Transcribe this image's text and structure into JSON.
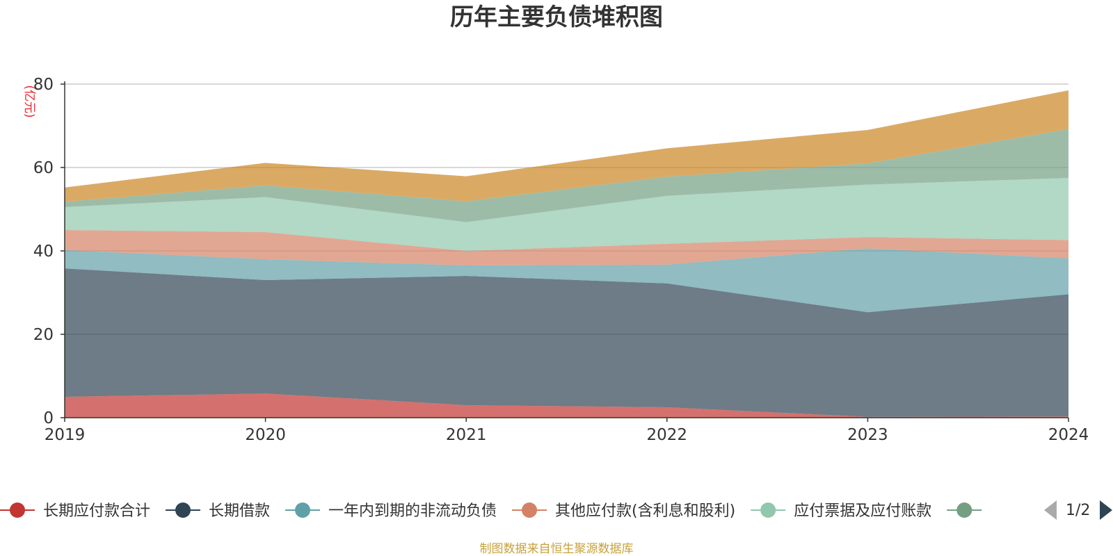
{
  "chart_data": {
    "type": "area",
    "stacked": true,
    "title": "历年主要负债堆积图",
    "unit": "(亿元)",
    "x": [
      "2019",
      "2020",
      "2021",
      "2022",
      "2023",
      "2024"
    ],
    "ylim": [
      0,
      80
    ],
    "yticks": [
      "0",
      "20",
      "40",
      "60",
      "80"
    ],
    "grid": true,
    "legend_position": "bottom",
    "series": [
      {
        "name": "长期应付款合计",
        "color": "#c23531",
        "values": [
          5.0,
          5.8,
          3.0,
          2.5,
          0.2,
          0.3
        ]
      },
      {
        "name": "长期借款",
        "color": "#2f4554",
        "values": [
          30.8,
          27.2,
          31.0,
          29.7,
          25.1,
          29.3
        ]
      },
      {
        "name": "一年内到期的非流动负债",
        "color": "#61a0a8",
        "values": [
          4.4,
          5.0,
          2.5,
          4.5,
          15.3,
          8.6
        ]
      },
      {
        "name": "其他应付款(含利息和股利)",
        "color": "#d48265",
        "values": [
          4.8,
          6.5,
          3.5,
          5.0,
          2.7,
          4.4
        ]
      },
      {
        "name": "应付票据及应付账款",
        "color": "#91c7ae",
        "values": [
          5.5,
          8.4,
          6.9,
          11.5,
          12.6,
          14.9
        ]
      },
      {
        "name": "",
        "color": "#749f83",
        "values": [
          1.3,
          2.8,
          5.0,
          4.6,
          5.1,
          11.7
        ]
      },
      {
        "name": "",
        "color": "#ca8622",
        "values": [
          3.4,
          5.4,
          6.0,
          6.8,
          8.0,
          9.3
        ]
      }
    ]
  },
  "legend": {
    "visible": [
      {
        "label": "长期应付款合计",
        "color": "#c23531"
      },
      {
        "label": "长期借款",
        "color": "#2f4554"
      },
      {
        "label": "一年内到期的非流动负债",
        "color": "#61a0a8"
      },
      {
        "label": "其他应付款(含利息和股利)",
        "color": "#d48265"
      },
      {
        "label": "应付票据及应付账款",
        "color": "#91c7ae"
      },
      {
        "label": "",
        "color": "#749f83"
      }
    ],
    "page_indicator": "1/2"
  },
  "footer": {
    "source_text": "制图数据来自恒生聚源数据库",
    "color": "#c9a13a"
  },
  "colors": {
    "unit_label": "#e8262c",
    "axis": "#333333",
    "grid": "#cccccc",
    "pager_prev_disabled": "#aaaaaa",
    "pager_next_active": "#2f4554"
  }
}
